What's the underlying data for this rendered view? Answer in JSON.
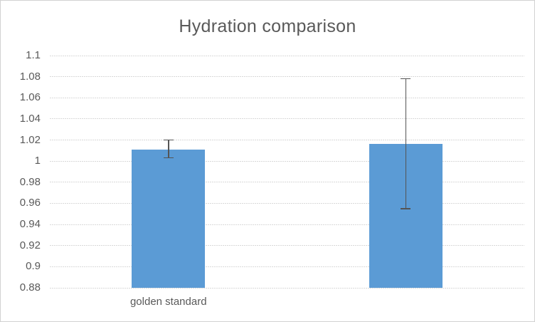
{
  "chart_data": {
    "type": "bar",
    "title": "Hydration comparison",
    "categories": [
      "golden standard",
      ""
    ],
    "values": [
      1.011,
      1.016
    ],
    "error_bars": [
      {
        "low": 1.003,
        "high": 1.02
      },
      {
        "low": 0.955,
        "high": 1.078
      }
    ],
    "ylim": [
      0.88,
      1.1
    ],
    "ytick_step": 0.02,
    "ytick_labels": [
      "1.1",
      "1.08",
      "1.06",
      "1.04",
      "1.02",
      "1",
      "0.98",
      "0.96",
      "0.94",
      "0.92",
      "0.9",
      "0.88"
    ],
    "xlabel": "",
    "ylabel": "",
    "grid": "horizontal-dashed",
    "legend": "none",
    "colors": {
      "bar": "#5b9bd5",
      "error_bar": "#545454",
      "gridline": "#d9d9d9",
      "tick_text": "#595959",
      "title_text": "#595959",
      "chart_border": "#d2d2d2",
      "background": "#ffffff"
    }
  }
}
